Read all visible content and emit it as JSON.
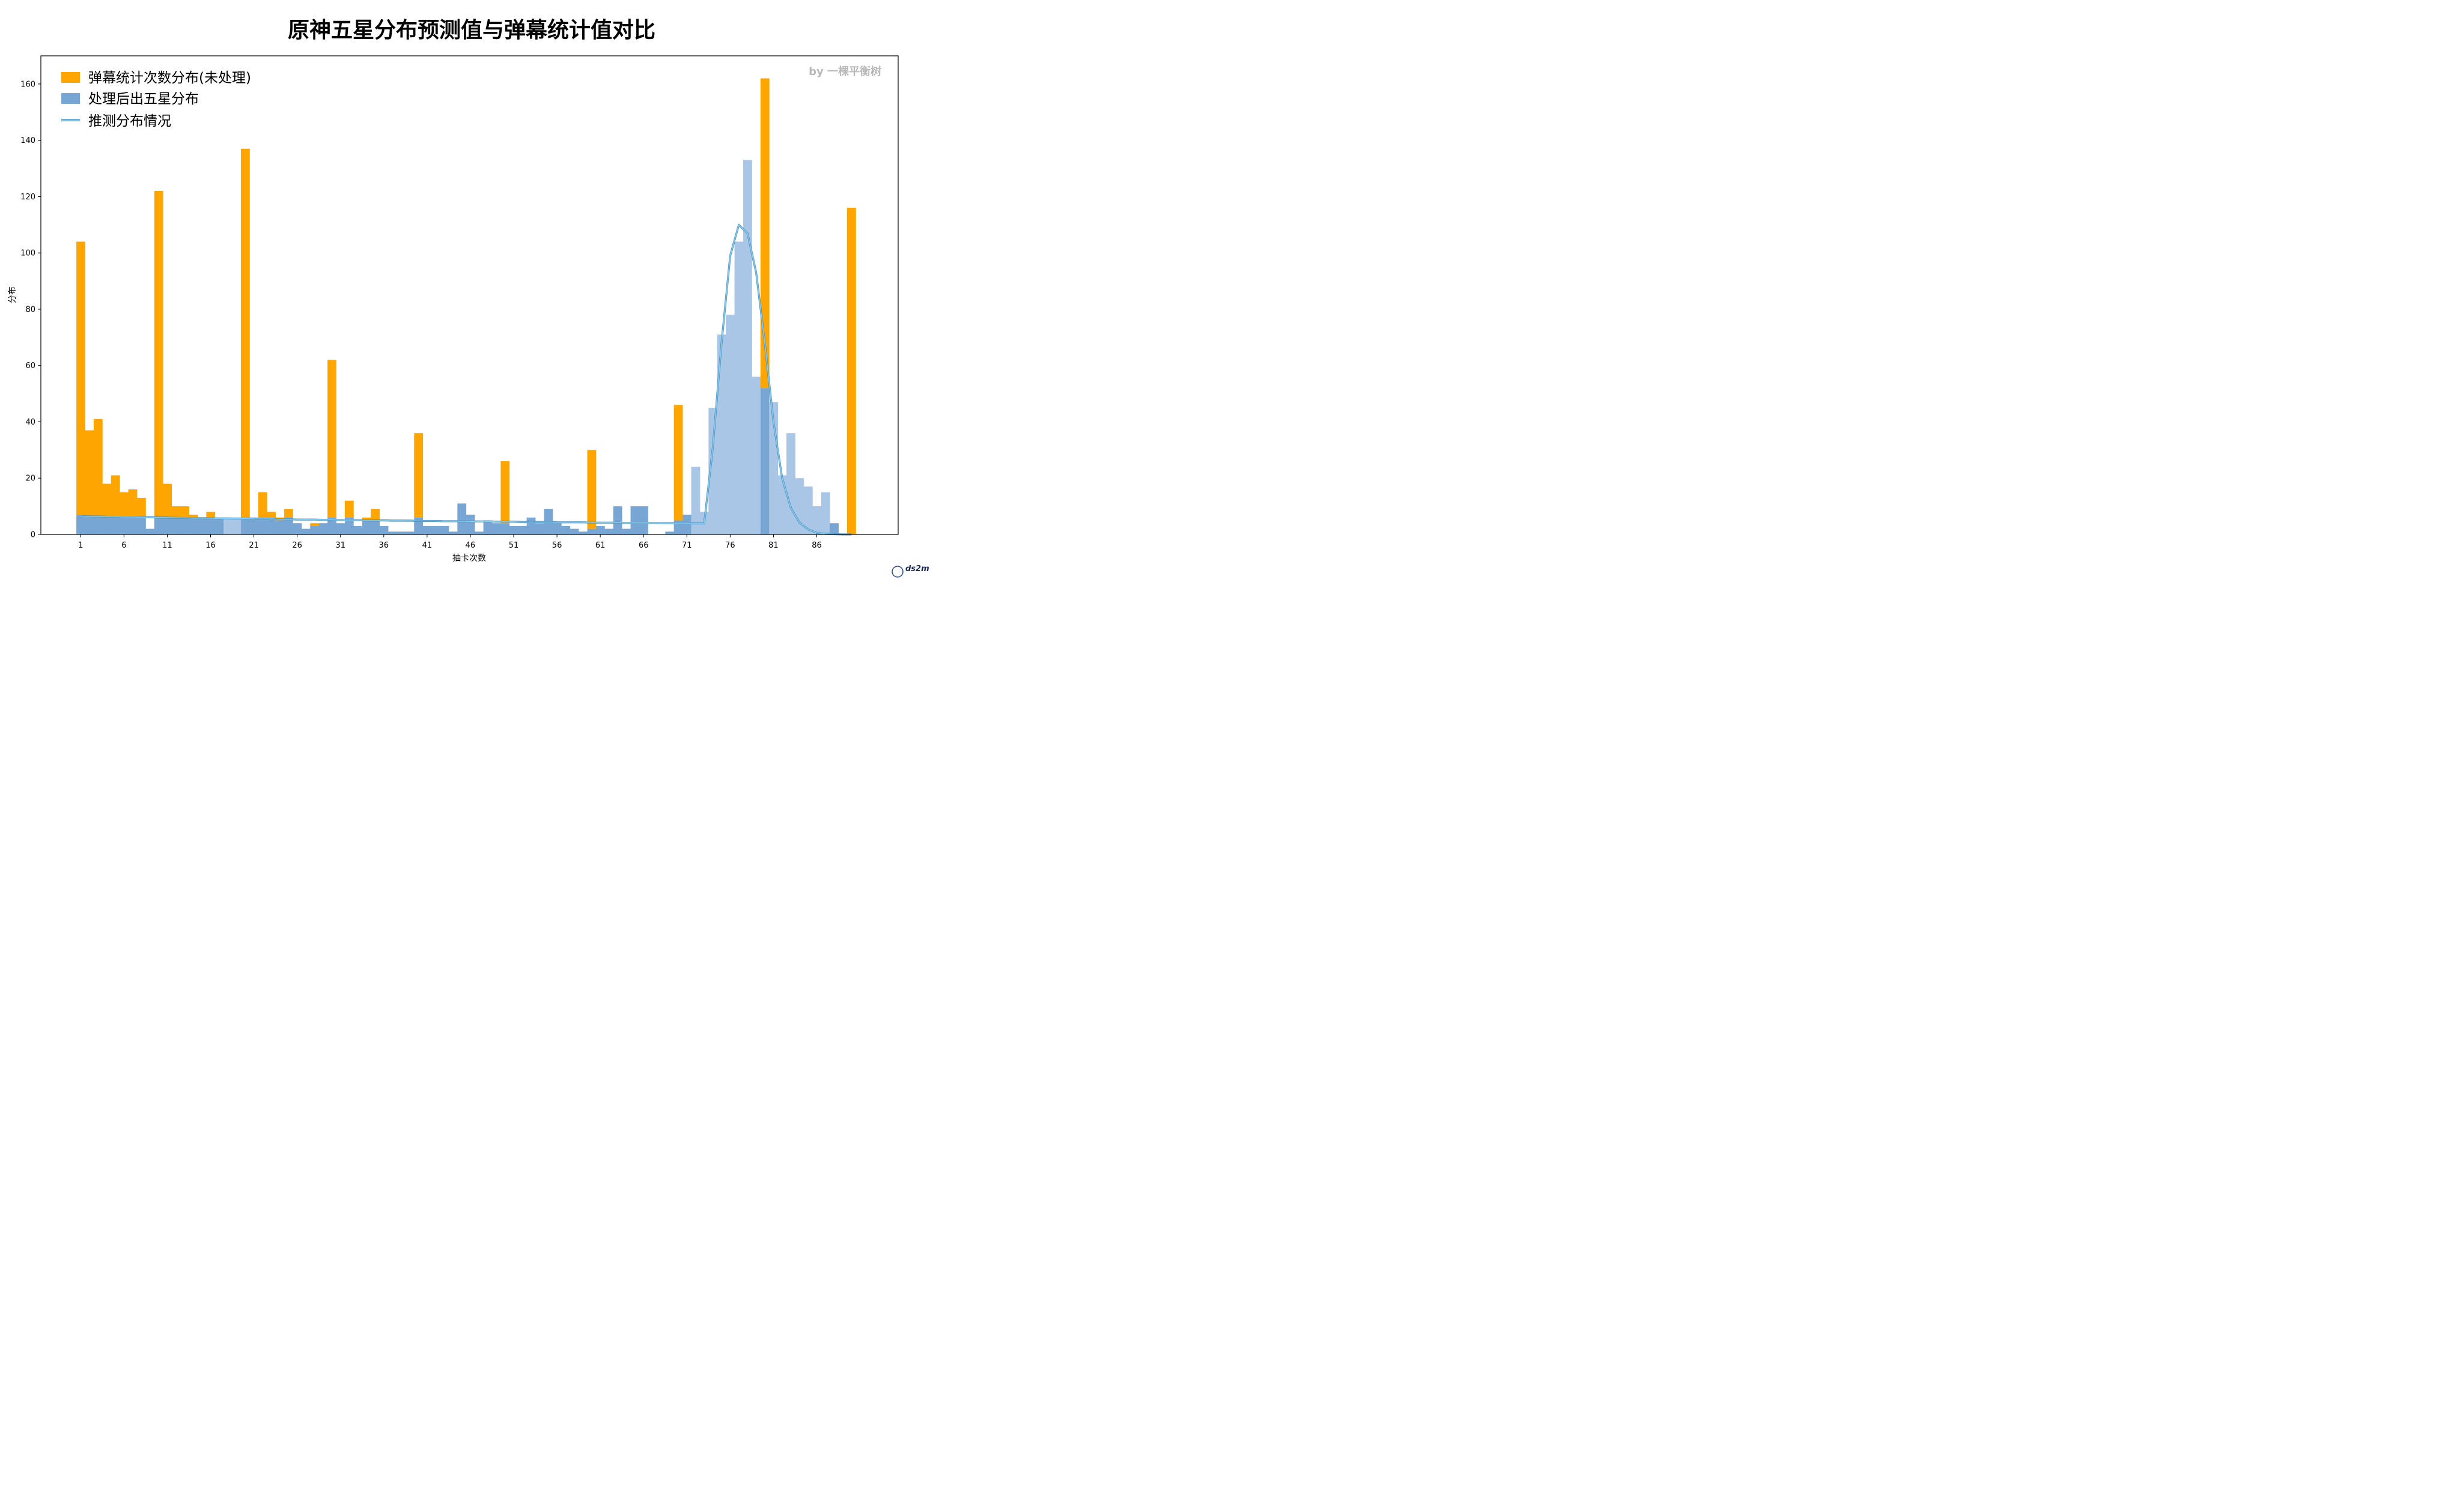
{
  "chart_data": {
    "type": "bar",
    "title": "原神五星分布预测值与弹幕统计值对比",
    "xlabel": "抽卡次数",
    "ylabel": "分布",
    "watermark": "by 一棵平衡树",
    "logo_text": "ds2m",
    "x_ticks": [
      1,
      6,
      11,
      16,
      21,
      26,
      31,
      36,
      41,
      46,
      51,
      56,
      61,
      66,
      71,
      76,
      81,
      86
    ],
    "y_ticks": [
      0,
      20,
      40,
      60,
      80,
      100,
      120,
      140,
      160
    ],
    "ylim": [
      0,
      170
    ],
    "xlim": [
      -3.6,
      95.4
    ],
    "grid": false,
    "legend_position": "upper-left",
    "colors": {
      "raw": "#ffa500",
      "processed": "#77a6d4",
      "processed_light": "#a9c6e7",
      "curve": "#87ceeb",
      "curve_edge": "#4f8fc0"
    },
    "x": [
      1,
      2,
      3,
      4,
      5,
      6,
      7,
      8,
      9,
      10,
      11,
      12,
      13,
      14,
      15,
      16,
      17,
      18,
      19,
      20,
      21,
      22,
      23,
      24,
      25,
      26,
      27,
      28,
      29,
      30,
      31,
      32,
      33,
      34,
      35,
      36,
      37,
      38,
      39,
      40,
      41,
      42,
      43,
      44,
      45,
      46,
      47,
      48,
      49,
      50,
      51,
      52,
      53,
      54,
      55,
      56,
      57,
      58,
      59,
      60,
      61,
      62,
      63,
      64,
      65,
      66,
      67,
      68,
      69,
      70,
      71,
      72,
      73,
      74,
      75,
      76,
      77,
      78,
      79,
      80,
      81,
      82,
      83,
      84,
      85,
      86,
      87,
      88,
      89,
      90
    ],
    "series": [
      {
        "name": "弹幕统计次数分布(未处理)",
        "values": [
          104,
          37,
          41,
          18,
          21,
          15,
          16,
          13,
          0,
          122,
          18,
          10,
          10,
          7,
          6,
          8,
          6,
          0,
          0,
          137,
          6,
          15,
          8,
          6,
          9,
          4,
          2,
          4,
          4,
          62,
          4,
          12,
          3,
          6,
          9,
          3,
          0,
          0,
          0,
          36,
          3,
          3,
          3,
          1,
          5,
          7,
          1,
          5,
          4,
          26,
          3,
          3,
          6,
          4,
          9,
          4,
          3,
          2,
          1,
          30,
          3,
          2,
          10,
          2,
          10,
          10,
          0,
          0,
          1,
          46,
          7,
          0,
          0,
          0,
          0,
          0,
          0,
          0,
          0,
          162,
          0,
          0,
          0,
          0,
          0,
          0,
          0,
          0,
          0,
          116
        ]
      },
      {
        "name": "处理后出五星分布",
        "values": [
          7,
          6,
          6,
          6,
          6,
          6,
          6,
          6,
          2,
          6,
          6,
          6,
          6,
          6,
          6,
          6,
          6,
          6,
          6,
          6,
          6,
          6,
          6,
          5,
          6,
          4,
          2,
          3,
          4,
          6,
          4,
          6,
          3,
          5,
          5,
          3,
          1,
          1,
          1,
          6,
          3,
          3,
          3,
          1,
          11,
          7,
          1,
          5,
          4,
          4,
          3,
          3,
          6,
          4,
          9,
          4,
          3,
          2,
          1,
          2,
          3,
          2,
          10,
          2,
          10,
          10,
          0,
          0,
          1,
          5,
          7,
          24,
          8,
          45,
          71,
          78,
          104,
          133,
          56,
          52,
          47,
          21,
          36,
          20,
          17,
          10,
          15,
          4,
          0,
          0
        ]
      },
      {
        "name": "推测分布情况",
        "values": [
          6.5,
          6.4,
          6.4,
          6.3,
          6.3,
          6.2,
          6.2,
          6.1,
          6.1,
          6.0,
          6.0,
          5.9,
          5.9,
          5.8,
          5.8,
          5.8,
          5.7,
          5.7,
          5.6,
          5.6,
          5.5,
          5.5,
          5.5,
          5.4,
          5.4,
          5.3,
          5.3,
          5.3,
          5.2,
          5.2,
          5.1,
          5.1,
          5.1,
          5.0,
          5.0,
          5.0,
          4.9,
          4.9,
          4.9,
          4.8,
          4.8,
          4.8,
          4.7,
          4.7,
          4.7,
          4.6,
          4.6,
          4.6,
          4.5,
          4.5,
          4.5,
          4.4,
          4.4,
          4.4,
          4.4,
          4.3,
          4.3,
          4.3,
          4.3,
          4.2,
          4.2,
          4.2,
          4.2,
          4.1,
          4.1,
          4.1,
          4.1,
          4.0,
          4.0,
          4.0,
          4.0,
          3.9,
          3.9,
          31.0,
          68.0,
          99.0,
          110.0,
          107.0,
          93.0,
          68.0,
          40.0,
          20.0,
          9.5,
          4.2,
          1.8,
          0.6,
          0.2,
          0.1,
          0.0,
          0.0
        ]
      }
    ]
  }
}
